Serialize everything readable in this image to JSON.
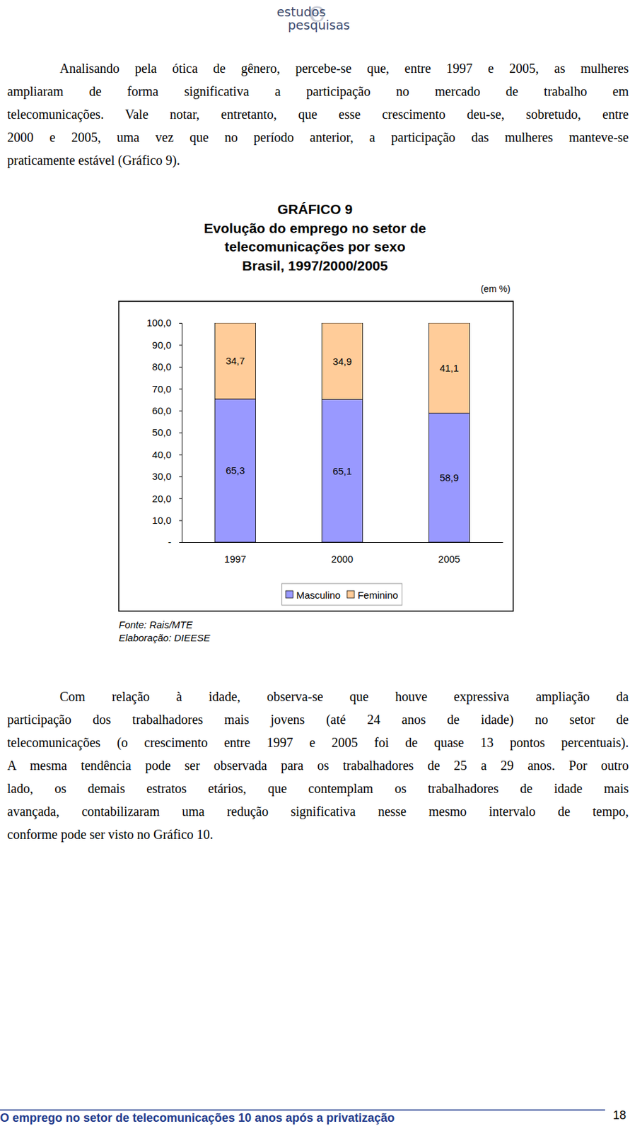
{
  "header": {
    "logo": [
      "estudos",
      "e",
      "pesquisas"
    ]
  },
  "paragraphs": [
    {
      "lines": [
        "Analisando pela ótica de gênero, percebe-se que, entre 1997 e 2005, as mulheres",
        "ampliaram de forma significativa a participação no mercado de trabalho em",
        "telecomunicações. Vale notar, entretanto, que esse crescimento deu-se, sobretudo, entre",
        "2000 e 2005, uma vez que no período anterior, a participação das mulheres manteve-se",
        "praticamente estável (Gráfico 9)."
      ]
    },
    {
      "lines": [
        "Com relação à idade, observa-se que houve expressiva ampliação da",
        "participação dos trabalhadores mais jovens (até 24 anos de idade) no setor de",
        "telecomunicações (o crescimento entre 1997 e 2005 foi de quase 13 pontos percentuais).",
        "A mesma tendência pode ser observada para os trabalhadores de 25 a 29 anos. Por outro",
        "lado, os demais estratos etários, que contemplam os trabalhadores de idade mais",
        "avançada, contabilizaram uma redução significativa nesse mesmo intervalo de tempo,",
        "conforme pode ser visto no Gráfico 10."
      ]
    }
  ],
  "chart_data": {
    "type": "bar",
    "stacked": true,
    "data_labels": true,
    "legend": "bottom",
    "title": "GRÁFICO 9",
    "subtitle": [
      "Evolução do emprego no setor de",
      "telecomunicações por sexo",
      "Brasil, 1997/2000/2005"
    ],
    "ylabel": "(em %)",
    "categories": [
      "1997",
      "2000",
      "2005"
    ],
    "series": [
      {
        "name": "Masculino",
        "color": "#9999ff",
        "values": [
          65.3,
          65.1,
          58.9
        ],
        "value_labels": [
          "65,3",
          "65,1",
          "58,9"
        ]
      },
      {
        "name": "Feminino",
        "color": "#ffcc99",
        "values": [
          34.7,
          34.9,
          41.1
        ],
        "value_labels": [
          "34,7",
          "34,9",
          "41,1"
        ]
      }
    ],
    "ylim": [
      0,
      100
    ],
    "yticks": [
      {
        "value": 0,
        "label": "-"
      },
      {
        "value": 10,
        "label": "10,0"
      },
      {
        "value": 20,
        "label": "20,0"
      },
      {
        "value": 30,
        "label": "30,0"
      },
      {
        "value": 40,
        "label": "40,0"
      },
      {
        "value": 50,
        "label": "50,0"
      },
      {
        "value": 60,
        "label": "60,0"
      },
      {
        "value": 70,
        "label": "70,0"
      },
      {
        "value": 80,
        "label": "80,0"
      },
      {
        "value": 90,
        "label": "90,0"
      },
      {
        "value": 100,
        "label": "100,0"
      }
    ],
    "source": [
      "Fonte: Rais/MTE",
      "Elaboração: DIEESE"
    ]
  },
  "footer": {
    "text": "O emprego no setor de telecomunicações 10 anos após a privatização",
    "page": "18"
  }
}
